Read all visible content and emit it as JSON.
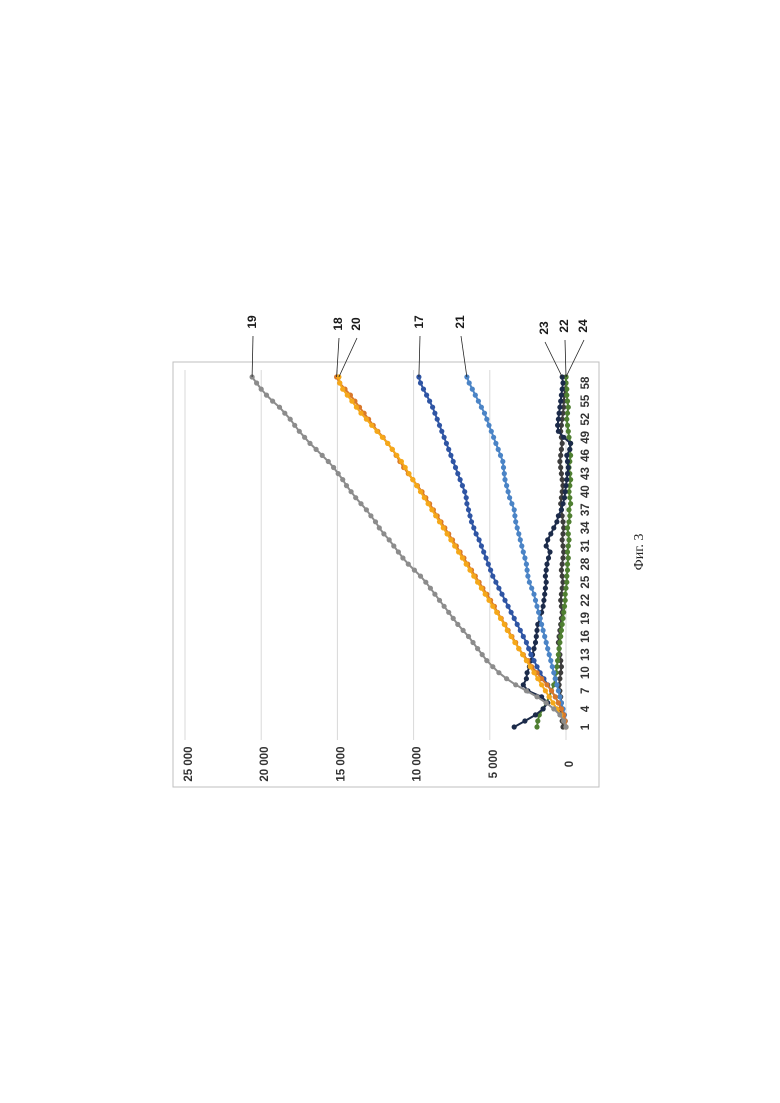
{
  "caption": "Фиг. 3",
  "chart_data": {
    "type": "line",
    "orientation": "rotated-90-ccw",
    "x": [
      1,
      2,
      3,
      4,
      5,
      6,
      7,
      8,
      9,
      10,
      11,
      12,
      13,
      14,
      15,
      16,
      17,
      18,
      19,
      20,
      21,
      22,
      23,
      24,
      25,
      26,
      27,
      28,
      29,
      30,
      31,
      32,
      33,
      34,
      35,
      36,
      37,
      38,
      39,
      40,
      41,
      42,
      43,
      44,
      45,
      46,
      47,
      48,
      49,
      50,
      51,
      52,
      53,
      54,
      55,
      56,
      57,
      58,
      59
    ],
    "x_tick_labels": [
      "1",
      "4",
      "7",
      "10",
      "13",
      "16",
      "19",
      "22",
      "25",
      "28",
      "31",
      "34",
      "37",
      "40",
      "43",
      "46",
      "49",
      "52",
      "55",
      "58"
    ],
    "y_tick_labels": [
      "0",
      "5 000",
      "10 000",
      "15 000",
      "20 000",
      "25 000"
    ],
    "ylim": [
      0,
      25000
    ],
    "grid": "horizontal",
    "legend": "none",
    "series": [
      {
        "name": "19",
        "color": "#8c8c8c",
        "values": [
          0,
          150,
          400,
          800,
          1300,
          1900,
          2600,
          3300,
          3900,
          4400,
          4800,
          5200,
          5500,
          5800,
          6100,
          6400,
          6750,
          7100,
          7400,
          7700,
          8000,
          8300,
          8600,
          8900,
          9200,
          9550,
          9950,
          10350,
          10700,
          11000,
          11300,
          11600,
          11950,
          12250,
          12500,
          12800,
          13100,
          13450,
          13800,
          14100,
          14400,
          14650,
          14950,
          15250,
          15600,
          16000,
          16400,
          16800,
          17150,
          17500,
          17800,
          18100,
          18450,
          18800,
          19250,
          19650,
          20000,
          20300,
          20600
        ]
      },
      {
        "name": "18",
        "color": "#d9782a",
        "values": [
          0,
          50,
          150,
          300,
          500,
          700,
          950,
          1250,
          1600,
          1900,
          2250,
          2500,
          2800,
          3100,
          3300,
          3550,
          3800,
          4000,
          4250,
          4500,
          4700,
          4950,
          5200,
          5450,
          5700,
          5950,
          6200,
          6450,
          6700,
          6950,
          7200,
          7450,
          7700,
          7950,
          8200,
          8450,
          8700,
          8950,
          9200,
          9450,
          9750,
          10050,
          10350,
          10650,
          10900,
          11150,
          11400,
          11700,
          12000,
          12350,
          12650,
          12950,
          13250,
          13550,
          13850,
          14150,
          14500,
          14850,
          15050
        ]
      },
      {
        "name": "20",
        "color": "#f5a81a",
        "values": [
          0,
          150,
          350,
          600,
          850,
          1100,
          1350,
          1600,
          1850,
          2100,
          2350,
          2600,
          2850,
          3100,
          3350,
          3600,
          3850,
          4050,
          4300,
          4550,
          4800,
          5050,
          5300,
          5550,
          5800,
          6050,
          6300,
          6550,
          6800,
          7050,
          7300,
          7550,
          7800,
          8050,
          8300,
          8550,
          8800,
          9050,
          9300,
          9550,
          9800,
          10050,
          10300,
          10550,
          10800,
          11100,
          11400,
          11700,
          12050,
          12400,
          12750,
          13100,
          13450,
          13750,
          14050,
          14350,
          14650,
          14850,
          14900
        ]
      },
      {
        "name": "17",
        "color": "#2f55a4",
        "values": [
          0,
          50,
          150,
          300,
          500,
          700,
          950,
          1200,
          1450,
          1700,
          1900,
          2100,
          2300,
          2450,
          2600,
          2800,
          3000,
          3200,
          3400,
          3600,
          3800,
          4000,
          4200,
          4400,
          4600,
          4800,
          4950,
          5100,
          5250,
          5400,
          5550,
          5700,
          5900,
          6050,
          6200,
          6300,
          6400,
          6500,
          6550,
          6650,
          6800,
          6950,
          7100,
          7250,
          7400,
          7550,
          7700,
          7850,
          8000,
          8150,
          8300,
          8450,
          8600,
          8750,
          8950,
          9150,
          9350,
          9550,
          9650
        ]
      },
      {
        "name": "21",
        "color": "#4b84c6",
        "values": [
          0,
          50,
          100,
          200,
          300,
          400,
          500,
          600,
          700,
          800,
          900,
          1000,
          1100,
          1200,
          1300,
          1400,
          1500,
          1600,
          1700,
          1800,
          1900,
          2000,
          2100,
          2250,
          2400,
          2500,
          2550,
          2600,
          2700,
          2800,
          2900,
          3000,
          3100,
          3200,
          3300,
          3350,
          3400,
          3550,
          3700,
          3800,
          3900,
          4000,
          4050,
          4100,
          4150,
          4300,
          4450,
          4600,
          4750,
          4900,
          5050,
          5200,
          5350,
          5550,
          5750,
          5950,
          6150,
          6350,
          6500
        ]
      },
      {
        "name": "23",
        "color": "#1c2b4a",
        "values": [
          3400,
          2700,
          2000,
          1500,
          1200,
          1600,
          2500,
          2800,
          2600,
          2550,
          2400,
          2300,
          2200,
          2100,
          2000,
          1950,
          1900,
          1850,
          1700,
          1600,
          1500,
          1450,
          1400,
          1350,
          1300,
          1350,
          1300,
          1250,
          1150,
          1050,
          1300,
          1200,
          1000,
          800,
          600,
          500,
          300,
          200,
          100,
          50,
          0,
          -50,
          -100,
          -150,
          -100,
          -50,
          -250,
          -300,
          150,
          500,
          550,
          500,
          450,
          400,
          350,
          300,
          250,
          200,
          250
        ]
      },
      {
        "name": "22",
        "color": "#4f7f31",
        "values": [
          1900,
          1850,
          1750,
          1500,
          1300,
          1100,
          950,
          800,
          700,
          650,
          600,
          550,
          500,
          450,
          400,
          350,
          300,
          250,
          200,
          150,
          100,
          50,
          50,
          0,
          -50,
          -50,
          -100,
          -100,
          -150,
          -100,
          -150,
          -200,
          -150,
          -100,
          -200,
          -250,
          -200,
          -300,
          -250,
          -200,
          -250,
          -300,
          -250,
          -200,
          -250,
          -300,
          -250,
          -300,
          -200,
          -150,
          -100,
          -50,
          -100,
          -150,
          -100,
          -50,
          -50,
          0,
          0
        ]
      },
      {
        "name": "24",
        "color": "#3d3d3d",
        "values": [
          200,
          250,
          300,
          350,
          300,
          350,
          400,
          450,
          400,
          350,
          300,
          350,
          400,
          450,
          500,
          450,
          400,
          350,
          300,
          250,
          300,
          350,
          300,
          250,
          200,
          250,
          300,
          250,
          200,
          150,
          200,
          250,
          200,
          150,
          200,
          250,
          300,
          350,
          300,
          250,
          200,
          250,
          300,
          350,
          400,
          350,
          300,
          250,
          300,
          350,
          300,
          250,
          200,
          150,
          150,
          100,
          50,
          0,
          0
        ]
      }
    ]
  }
}
